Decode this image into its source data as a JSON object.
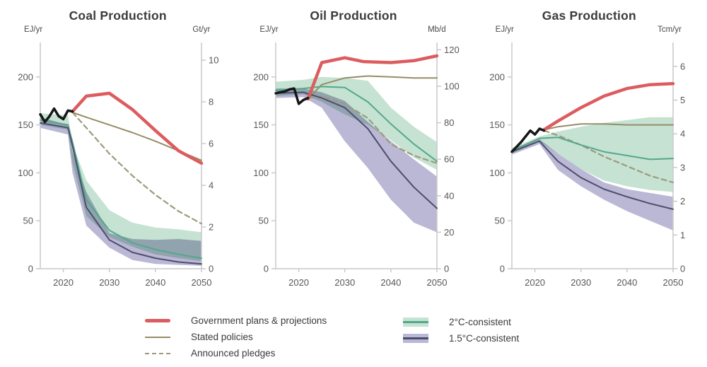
{
  "figure_background": "#ffffff",
  "colors": {
    "government": "#dc5c5f",
    "stated": "#978d66",
    "announced": "#9e997e",
    "line_2c": "#54a88a",
    "band_2c": "#c5e2d2",
    "line_15c": "#4e4d6e",
    "band_15c": "#bab8d4",
    "historical": "#161616",
    "axis": "#c9c9c9",
    "tick_text": "#585858",
    "title_text": "#3c3c3c"
  },
  "chart_data": [
    {
      "type": "line",
      "title": "Coal Production",
      "left_axis": {
        "unit": "EJ/yr",
        "ticks": [
          0,
          50,
          100,
          150,
          200
        ],
        "max": 236
      },
      "right_axis": {
        "unit": "Gt/yr",
        "ticks": [
          0,
          2,
          4,
          6,
          8,
          10
        ],
        "max": 10.85
      },
      "x_axis": {
        "ticks": [
          2020,
          2030,
          2040,
          2050
        ],
        "domain": [
          2015,
          2050
        ]
      },
      "bands": [
        {
          "name": "2c-range",
          "color_key": "band_2c",
          "x": [
            2015,
            2021,
            2022,
            2025,
            2030,
            2035,
            2040,
            2045,
            2050
          ],
          "hi": [
            162,
            160,
            130,
            92,
            61,
            48,
            43,
            41,
            38
          ],
          "lo": [
            150,
            145,
            110,
            55,
            33,
            23,
            15,
            11,
            8
          ]
        },
        {
          "name": "15c-range",
          "color_key": "band_15c",
          "x": [
            2015,
            2021,
            2022,
            2025,
            2030,
            2035,
            2040,
            2045,
            2050
          ],
          "hi": [
            158,
            150,
            122,
            80,
            37,
            31,
            30,
            31,
            29
          ],
          "lo": [
            147,
            140,
            100,
            45,
            22,
            9,
            5,
            4,
            3
          ]
        }
      ],
      "lines": [
        {
          "name": "stated-policies",
          "color_key": "stated",
          "width": 2,
          "x": [
            2022,
            2025,
            2030,
            2035,
            2040,
            2045,
            2050
          ],
          "y": [
            163,
            158,
            150,
            142,
            133,
            123,
            113
          ]
        },
        {
          "name": "announced-pledges",
          "color_key": "announced",
          "width": 2.2,
          "dash": "7 5",
          "x": [
            2022,
            2025,
            2030,
            2035,
            2040,
            2045,
            2050
          ],
          "y": [
            163,
            147,
            120,
            97,
            77,
            60,
            47
          ]
        },
        {
          "name": "2c-consistent",
          "color_key": "line_2c",
          "width": 2,
          "x": [
            2015,
            2021,
            2022,
            2025,
            2030,
            2035,
            2040,
            2045,
            2050
          ],
          "y": [
            155,
            150,
            132,
            72,
            40,
            27,
            20,
            15,
            11
          ]
        },
        {
          "name": "15c-consistent",
          "color_key": "line_15c",
          "width": 2,
          "x": [
            2015,
            2021,
            2022,
            2025,
            2030,
            2035,
            2040,
            2045,
            2050
          ],
          "y": [
            152,
            147,
            128,
            64,
            30,
            17,
            11,
            7,
            5
          ]
        },
        {
          "name": "government-plans",
          "color_key": "government",
          "width": 4.5,
          "x": [
            2022,
            2025,
            2030,
            2035,
            2040,
            2045,
            2050
          ],
          "y": [
            164,
            180,
            183,
            166,
            144,
            123,
            110
          ]
        },
        {
          "name": "historical",
          "color_key": "historical",
          "width": 3.5,
          "x": [
            2015,
            2016,
            2017,
            2018,
            2019,
            2020,
            2021,
            2022
          ],
          "y": [
            161,
            153,
            159,
            167,
            159,
            156,
            165,
            164
          ]
        }
      ]
    },
    {
      "type": "line",
      "title": "Oil Production",
      "left_axis": {
        "unit": "EJ/yr",
        "ticks": [
          0,
          50,
          100,
          150,
          200
        ],
        "max": 236
      },
      "right_axis": {
        "unit": "Mb/d",
        "ticks": [
          0,
          20,
          40,
          60,
          80,
          100,
          120
        ],
        "max": 124
      },
      "x_axis": {
        "ticks": [
          2020,
          2030,
          2040,
          2050
        ],
        "domain": [
          2015,
          2050
        ]
      },
      "bands": [
        {
          "name": "2c-range",
          "color_key": "band_2c",
          "x": [
            2015,
            2021,
            2025,
            2030,
            2035,
            2040,
            2045,
            2050
          ],
          "hi": [
            195,
            197,
            200,
            199,
            196,
            168,
            148,
            132
          ],
          "lo": [
            180,
            182,
            174,
            161,
            150,
            134,
            116,
            103
          ]
        },
        {
          "name": "15c-range",
          "color_key": "band_15c",
          "x": [
            2015,
            2021,
            2025,
            2030,
            2035,
            2040,
            2045,
            2050
          ],
          "hi": [
            188,
            188,
            184,
            175,
            153,
            133,
            114,
            96
          ],
          "lo": [
            178,
            179,
            168,
            133,
            105,
            72,
            48,
            38
          ]
        }
      ],
      "lines": [
        {
          "name": "stated-policies",
          "color_key": "stated",
          "width": 2,
          "x": [
            2022,
            2025,
            2030,
            2035,
            2040,
            2045,
            2050
          ],
          "y": [
            177,
            192,
            199,
            201,
            200,
            199,
            199
          ]
        },
        {
          "name": "announced-pledges",
          "color_key": "announced",
          "width": 2.2,
          "dash": "7 5",
          "x": [
            2022,
            2025,
            2030,
            2035,
            2040,
            2045,
            2050
          ],
          "y": [
            178,
            180,
            172,
            157,
            130,
            118,
            110
          ]
        },
        {
          "name": "2c-consistent",
          "color_key": "line_2c",
          "width": 2,
          "x": [
            2015,
            2021,
            2025,
            2030,
            2035,
            2040,
            2045,
            2050
          ],
          "y": [
            186,
            188,
            190,
            189,
            174,
            151,
            130,
            112
          ]
        },
        {
          "name": "15c-consistent",
          "color_key": "line_15c",
          "width": 2,
          "x": [
            2015,
            2021,
            2025,
            2030,
            2035,
            2040,
            2045,
            2050
          ],
          "y": [
            183,
            184,
            178,
            168,
            146,
            112,
            85,
            63
          ]
        },
        {
          "name": "government-plans",
          "color_key": "government",
          "width": 4.5,
          "x": [
            2022,
            2025,
            2030,
            2034,
            2040,
            2045,
            2050
          ],
          "y": [
            177,
            215,
            220,
            216,
            215,
            217,
            222
          ]
        },
        {
          "name": "historical",
          "color_key": "historical",
          "width": 3.5,
          "x": [
            2015,
            2016,
            2017,
            2018,
            2019,
            2020,
            2021,
            2022
          ],
          "y": [
            183,
            184,
            185,
            187,
            188,
            172,
            176,
            178
          ]
        }
      ]
    },
    {
      "type": "line",
      "title": "Gas Production",
      "left_axis": {
        "unit": "EJ/yr",
        "ticks": [
          0,
          50,
          100,
          150,
          200
        ],
        "max": 236
      },
      "right_axis": {
        "unit": "Tcm/yr",
        "ticks": [
          0,
          1,
          2,
          3,
          4,
          5,
          6
        ],
        "max": 6.71
      },
      "x_axis": {
        "ticks": [
          2020,
          2030,
          2040,
          2050
        ],
        "domain": [
          2015,
          2050
        ]
      },
      "bands": [
        {
          "name": "2c-range",
          "color_key": "band_2c",
          "x": [
            2015,
            2021,
            2025,
            2030,
            2035,
            2040,
            2045,
            2050
          ],
          "hi": [
            126,
            138,
            143,
            148,
            152,
            155,
            158,
            158
          ],
          "lo": [
            120,
            133,
            120,
            104,
            92,
            86,
            82,
            80
          ]
        },
        {
          "name": "15c-range",
          "color_key": "band_15c",
          "x": [
            2015,
            2021,
            2025,
            2030,
            2035,
            2040,
            2045,
            2050
          ],
          "hi": [
            125,
            135,
            120,
            104,
            90,
            83,
            79,
            75
          ],
          "lo": [
            119,
            130,
            103,
            86,
            72,
            60,
            50,
            40
          ]
        }
      ],
      "lines": [
        {
          "name": "stated-policies",
          "color_key": "stated",
          "width": 2,
          "x": [
            2022,
            2025,
            2030,
            2035,
            2040,
            2045,
            2050
          ],
          "y": [
            145,
            148,
            151,
            151,
            150,
            150,
            150
          ]
        },
        {
          "name": "announced-pledges",
          "color_key": "announced",
          "width": 2.2,
          "dash": "7 5",
          "x": [
            2022,
            2025,
            2030,
            2035,
            2040,
            2045,
            2050
          ],
          "y": [
            144,
            139,
            129,
            117,
            107,
            97,
            90
          ]
        },
        {
          "name": "2c-consistent",
          "color_key": "line_2c",
          "width": 2,
          "x": [
            2015,
            2021,
            2025,
            2030,
            2035,
            2040,
            2045,
            2050
          ],
          "y": [
            123,
            136,
            137,
            129,
            122,
            118,
            114,
            115
          ]
        },
        {
          "name": "15c-consistent",
          "color_key": "line_15c",
          "width": 2,
          "x": [
            2015,
            2021,
            2025,
            2030,
            2035,
            2040,
            2045,
            2050
          ],
          "y": [
            122,
            133,
            112,
            95,
            83,
            75,
            68,
            62
          ]
        },
        {
          "name": "government-plans",
          "color_key": "government",
          "width": 4.5,
          "x": [
            2022,
            2025,
            2030,
            2035,
            2040,
            2045,
            2050
          ],
          "y": [
            145,
            154,
            168,
            180,
            188,
            192,
            193
          ]
        },
        {
          "name": "historical",
          "color_key": "historical",
          "width": 3.5,
          "x": [
            2015,
            2016,
            2017,
            2018,
            2019,
            2020,
            2021,
            2022
          ],
          "y": [
            122,
            127,
            132,
            138,
            144,
            140,
            146,
            144
          ]
        }
      ]
    }
  ],
  "legend": {
    "items": [
      {
        "label": "Government plans & projections",
        "swatch": "thick-line",
        "color_key": "government"
      },
      {
        "label": "Stated policies",
        "swatch": "thin-line",
        "color_key": "stated"
      },
      {
        "label": "Announced pledges",
        "swatch": "dashed-line",
        "color_key": "announced"
      },
      {
        "label": "2°C-consistent",
        "swatch": "band",
        "color_key": "line_2c",
        "band_key": "band_2c"
      },
      {
        "label": "1.5°C-consistent",
        "swatch": "band",
        "color_key": "line_15c",
        "band_key": "band_15c"
      }
    ]
  }
}
